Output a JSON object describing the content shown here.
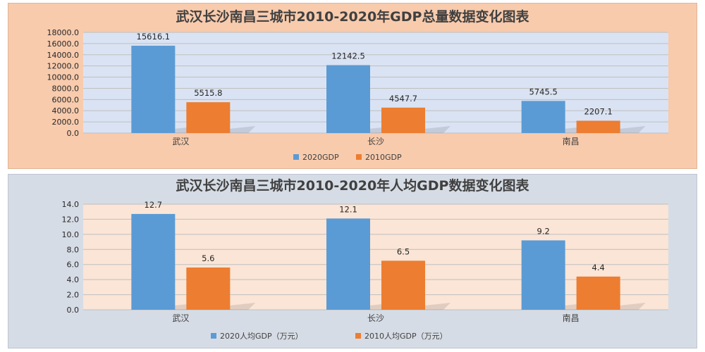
{
  "chart_data": [
    {
      "type": "bar",
      "title": "武汉长沙南昌三城市2010-2020年GDP总量数据变化图表",
      "categories": [
        "武汉",
        "长沙",
        "南昌"
      ],
      "series": [
        {
          "name": "2020GDP",
          "values": [
            15616.1,
            12142.5,
            5745.5
          ]
        },
        {
          "name": "2010GDP",
          "values": [
            5515.8,
            4547.7,
            2207.1
          ]
        }
      ],
      "y_ticks": [
        "0.0",
        "2000.0",
        "4000.0",
        "6000.0",
        "8000.0",
        "10000.0",
        "12000.0",
        "14000.0",
        "16000.0",
        "18000.0"
      ],
      "ylim": [
        0,
        18000
      ],
      "grid": true,
      "legend_position": "bottom",
      "colors": {
        "series": [
          "#5b9bd5",
          "#ed7d31"
        ],
        "panel_bg": "#f8cbad",
        "plot_bg": "#dae3f3"
      }
    },
    {
      "type": "bar",
      "title": "武汉长沙南昌三城市2010-2020年人均GDP数据变化图表",
      "categories": [
        "武汉",
        "长沙",
        "南昌"
      ],
      "series": [
        {
          "name": "2020人均GDP（万元）",
          "values": [
            12.7,
            12.1,
            9.2
          ]
        },
        {
          "name": "2010人均GDP（万元）",
          "values": [
            5.6,
            6.5,
            4.4
          ]
        }
      ],
      "y_ticks": [
        "0.0",
        "2.0",
        "4.0",
        "6.0",
        "8.0",
        "10.0",
        "12.0",
        "14.0"
      ],
      "ylim": [
        0,
        14
      ],
      "grid": true,
      "legend_position": "bottom",
      "colors": {
        "series": [
          "#5b9bd5",
          "#ed7d31"
        ],
        "panel_bg": "#d6dce5",
        "plot_bg": "#fbe5d6"
      }
    }
  ]
}
